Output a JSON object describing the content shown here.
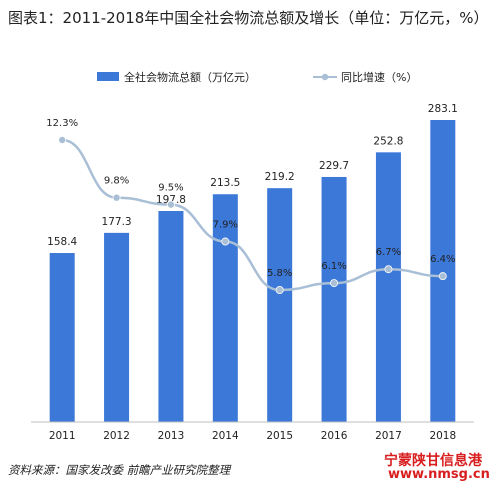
{
  "title": "图表1：2011-2018年中国全社会物流总额及增长（单位：万亿元，%）",
  "source": "资料来源：国家发改委 前瞻产业研究院整理",
  "watermark": "宁蒙陕甘信息港",
  "watermark_url": "www.nmsg.cn",
  "chart_data": {
    "type": "bar",
    "categories": [
      "2011",
      "2012",
      "2013",
      "2014",
      "2015",
      "2016",
      "2017",
      "2018"
    ],
    "series": [
      {
        "name": "全社会物流总额（万亿元）",
        "type": "bar",
        "color": "#3b78d8",
        "values": [
          158.4,
          177.3,
          197.8,
          213.5,
          219.2,
          229.7,
          252.8,
          283.1
        ],
        "labels": [
          "158.4",
          "177.3",
          "197.8",
          "213.5",
          "219.2",
          "229.7",
          "252.8",
          "283.1"
        ]
      },
      {
        "name": "同比增速（%）",
        "type": "line",
        "color": "#a9bfd6",
        "values": [
          12.3,
          9.8,
          9.5,
          7.9,
          5.8,
          6.1,
          6.7,
          6.4
        ],
        "labels": [
          "12.3%",
          "9.8%",
          "9.5%",
          "7.9%",
          "5.8%",
          "6.1%",
          "6.7%",
          "6.4%"
        ]
      }
    ],
    "ylim_bar": [
      0,
      300
    ],
    "ylim_line": [
      0,
      14
    ],
    "legend_position": "top",
    "grid": false
  }
}
